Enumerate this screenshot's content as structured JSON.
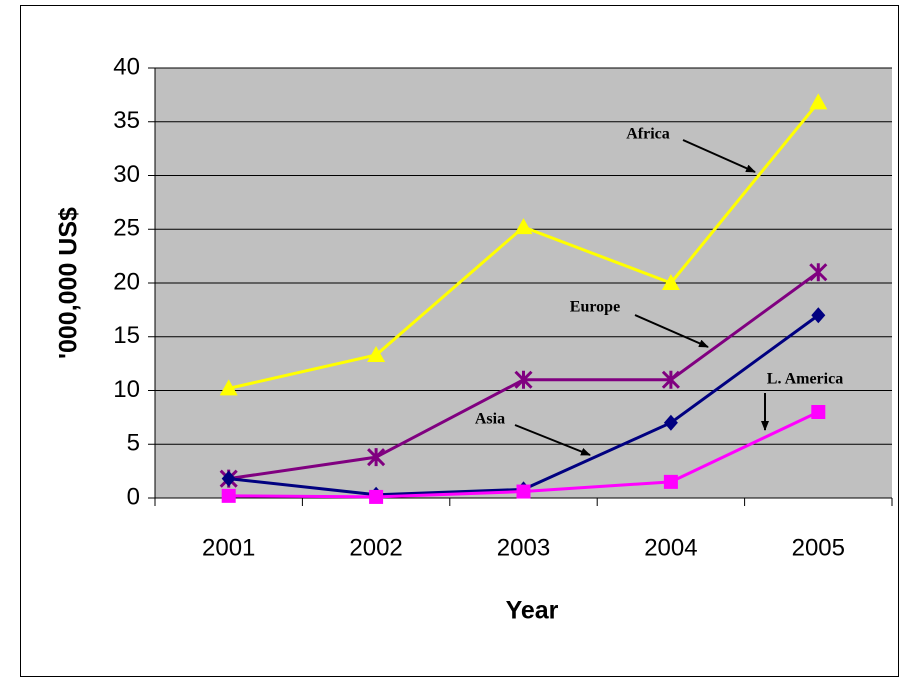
{
  "chart_data": {
    "type": "line",
    "x_label": "Year",
    "y_label": "'000,000 US$",
    "categories": [
      "2001",
      "2002",
      "2003",
      "2004",
      "2005"
    ],
    "series": [
      {
        "name": "Africa",
        "color": "#ffff00",
        "marker": "triangle",
        "values": [
          10.2,
          13.3,
          25.2,
          20,
          36.8
        ]
      },
      {
        "name": "Europe",
        "color": "#800080",
        "marker": "asterisk",
        "values": [
          1.8,
          3.8,
          11,
          11,
          21
        ]
      },
      {
        "name": "Asia",
        "color": "#000080",
        "marker": "diamond",
        "values": [
          1.8,
          0.3,
          0.8,
          7,
          17
        ]
      },
      {
        "name": "L. America",
        "color": "#ff00ff",
        "marker": "square",
        "values": [
          0.2,
          0.1,
          0.6,
          1.5,
          8
        ]
      }
    ],
    "ylim": [
      0,
      40
    ],
    "yticks": [
      0,
      5,
      10,
      15,
      20,
      25,
      30,
      35,
      40
    ],
    "grid": true
  }
}
